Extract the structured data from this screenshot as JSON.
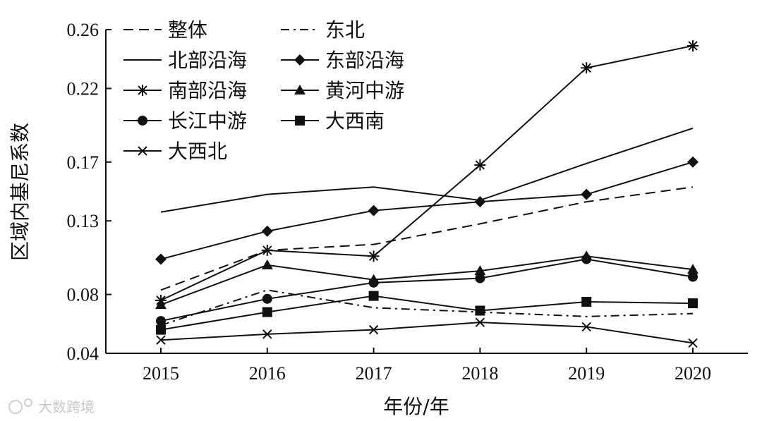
{
  "chart_data": {
    "type": "line",
    "title": "",
    "xlabel": "年份/年",
    "ylabel": "区域内基尼系数",
    "x": [
      2015,
      2016,
      2017,
      2018,
      2019,
      2020
    ],
    "x_tick_labels": [
      "2015",
      "2016",
      "2017",
      "2018",
      "2019",
      "2020"
    ],
    "ylim": [
      0.04,
      0.26
    ],
    "y_ticks": [
      0.04,
      0.08,
      0.13,
      0.17,
      0.22,
      0.26
    ],
    "y_tick_labels": [
      "0.04",
      "0.08",
      "0.13",
      "0.17",
      "0.22",
      "0.26"
    ],
    "grid": false,
    "legend_position": "top-left",
    "series": [
      {
        "name": "整体",
        "dash": "dashed",
        "marker": "none",
        "values": [
          0.083,
          0.11,
          0.114,
          0.128,
          0.143,
          0.153
        ]
      },
      {
        "name": "东北",
        "dash": "dashdot",
        "marker": "none",
        "values": [
          0.059,
          0.083,
          0.071,
          0.068,
          0.065,
          0.067
        ]
      },
      {
        "name": "北部沿海",
        "dash": "solid",
        "marker": "none",
        "values": [
          0.136,
          0.148,
          0.153,
          0.144,
          0.169,
          0.193
        ]
      },
      {
        "name": "东部沿海",
        "dash": "solid",
        "marker": "diamond",
        "values": [
          0.104,
          0.123,
          0.137,
          0.143,
          0.148,
          0.17
        ]
      },
      {
        "name": "南部沿海",
        "dash": "solid",
        "marker": "asterisk",
        "values": [
          0.076,
          0.11,
          0.106,
          0.168,
          0.234,
          0.249
        ]
      },
      {
        "name": "黄河中游",
        "dash": "solid",
        "marker": "triangle",
        "values": [
          0.073,
          0.1,
          0.09,
          0.096,
          0.106,
          0.097
        ]
      },
      {
        "name": "长江中游",
        "dash": "solid",
        "marker": "circle",
        "values": [
          0.062,
          0.077,
          0.088,
          0.091,
          0.104,
          0.092
        ]
      },
      {
        "name": "大西南",
        "dash": "solid",
        "marker": "square",
        "values": [
          0.056,
          0.068,
          0.079,
          0.069,
          0.075,
          0.074
        ]
      },
      {
        "name": "大西北",
        "dash": "solid",
        "marker": "x",
        "values": [
          0.049,
          0.053,
          0.056,
          0.061,
          0.058,
          0.047
        ]
      }
    ]
  },
  "watermark": {
    "text": "大数跨境"
  }
}
